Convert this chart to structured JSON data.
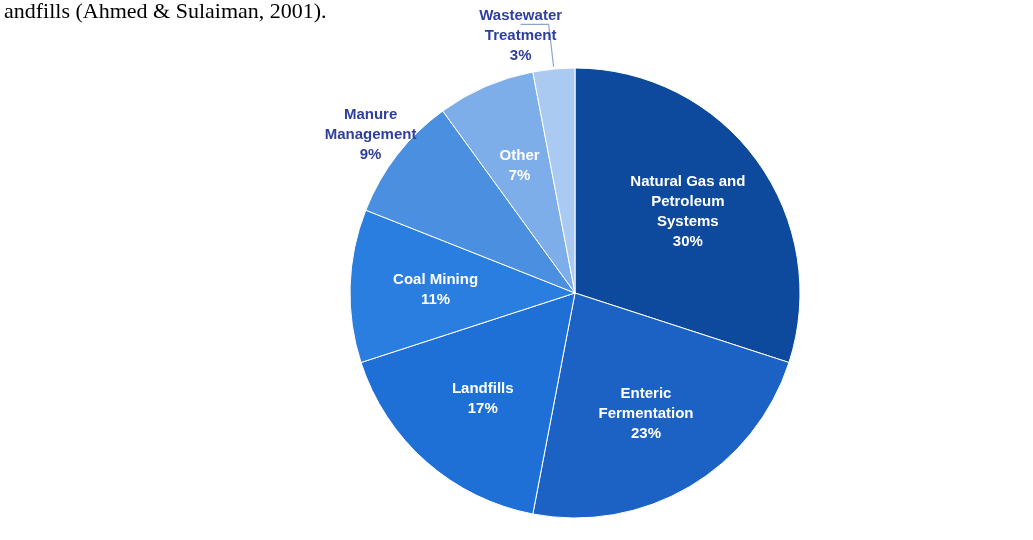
{
  "chart_data": {
    "type": "pie",
    "annotations": [
      "andfills (Ahmed & Sulaiman, 2001)."
    ],
    "categories": [
      "Natural Gas and Petroleum Systems",
      "Enteric Fermentation",
      "Landfills",
      "Coal Mining",
      "Manure Management",
      "Other",
      "Wastewater Treatment"
    ],
    "values": [
      30,
      23,
      17,
      11,
      9,
      7,
      3
    ],
    "value_labels": [
      "30%",
      "23%",
      "17%",
      "11%",
      "9%",
      "7%",
      "3%"
    ],
    "colors": [
      "#0d4a9e",
      "#1b62c4",
      "#1f70d6",
      "#2a7edf",
      "#4a8fe0",
      "#7eaee9",
      "#abcaf1"
    ]
  }
}
